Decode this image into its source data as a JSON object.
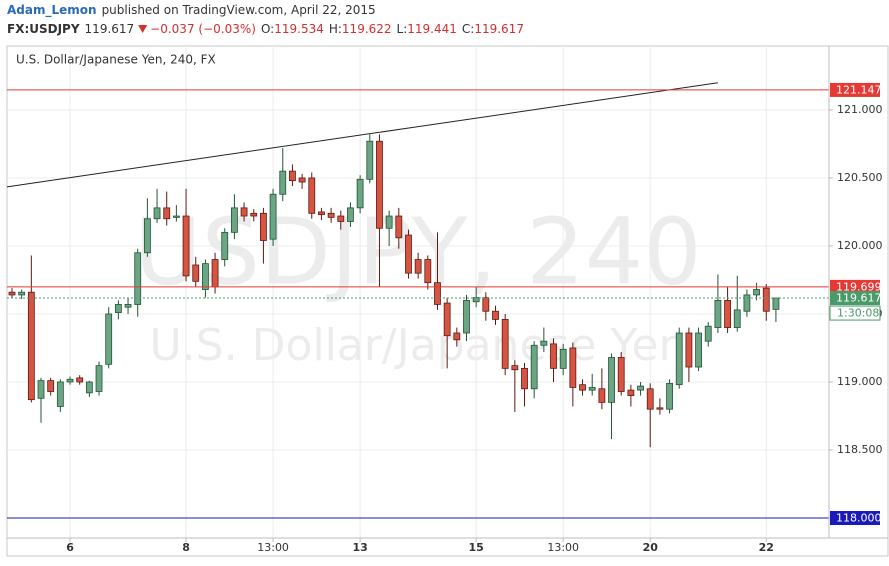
{
  "header": {
    "author": "Adam_Lemon",
    "published": "published on TradingView.com, April 22, 2015",
    "symbol": "FX:USDJPY",
    "last": 119.617,
    "change": "−0.037 (−0.03%)",
    "ohlc": [
      {
        "label": "O:",
        "value": 119.534
      },
      {
        "label": "H:",
        "value": 119.622
      },
      {
        "label": "L:",
        "value": 119.441
      },
      {
        "label": "C:",
        "value": 119.617
      }
    ]
  },
  "chart_data": {
    "type": "candlestick",
    "title": "U.S. Dollar/Japanese Yen, 240, FX",
    "watermark": {
      "symbol": "USDJPY, 240",
      "name": "U.S. Dollar/Japanese Yen"
    },
    "categories": [
      null,
      null,
      null,
      null,
      null,
      null,
      "6",
      null,
      null,
      null,
      null,
      null,
      null,
      null,
      null,
      null,
      null,
      null,
      "8",
      null,
      null,
      null,
      null,
      null,
      null,
      null,
      null,
      "13:00",
      null,
      null,
      null,
      null,
      null,
      null,
      null,
      null,
      "13",
      null,
      null,
      null,
      null,
      null,
      null,
      null,
      null,
      null,
      null,
      null,
      "15",
      null,
      null,
      null,
      null,
      null,
      null,
      null,
      null,
      "13:00",
      null,
      null,
      null,
      null,
      null,
      null,
      null,
      null,
      "20",
      null,
      null,
      null,
      null,
      null,
      null,
      null,
      null,
      null,
      null,
      null,
      "22",
      null
    ],
    "open": [
      119.66,
      119.64,
      119.66,
      118.88,
      119.01,
      118.82,
      119.0,
      119.03,
      118.92,
      118.93,
      119.13,
      119.51,
      119.55,
      119.57,
      119.95,
      120.2,
      120.28,
      120.21,
      120.22,
      119.86,
      119.68,
      119.9,
      119.9,
      120.1,
      120.28,
      120.24,
      120.24,
      120.05,
      120.38,
      120.55,
      120.5,
      120.5,
      120.25,
      120.24,
      120.22,
      120.18,
      120.28,
      120.49,
      120.77,
      120.13,
      120.22,
      120.08,
      119.9,
      119.9,
      119.73,
      119.58,
      119.36,
      119.36,
      119.59,
      119.62,
      119.52,
      119.46,
      119.12,
      119.1,
      118.95,
      119.27,
      119.28,
      119.1,
      119.25,
      118.98,
      118.94,
      118.95,
      118.85,
      119.18,
      118.94,
      118.94,
      118.95,
      118.81,
      118.8,
      118.98,
      119.36,
      119.11,
      119.3,
      119.4,
      119.6,
      119.4,
      119.52,
      119.64,
      119.69,
      119.534
    ],
    "high": [
      119.69,
      119.68,
      119.93,
      119.03,
      119.03,
      119.02,
      119.04,
      119.05,
      119.01,
      119.15,
      119.55,
      119.6,
      119.62,
      119.98,
      120.35,
      120.42,
      120.4,
      120.3,
      120.42,
      119.92,
      119.9,
      119.95,
      120.13,
      120.38,
      120.32,
      120.27,
      120.28,
      120.42,
      120.72,
      120.6,
      120.53,
      120.54,
      120.28,
      120.28,
      120.26,
      120.32,
      120.52,
      120.82,
      120.82,
      120.26,
      120.28,
      120.12,
      119.95,
      119.93,
      120.1,
      119.62,
      119.4,
      119.64,
      119.7,
      119.66,
      119.56,
      119.5,
      119.16,
      119.14,
      119.3,
      119.4,
      119.32,
      119.28,
      119.29,
      119.02,
      119.06,
      119.1,
      119.21,
      119.22,
      118.98,
      119.0,
      118.99,
      118.88,
      119.02,
      119.4,
      119.4,
      119.4,
      119.44,
      119.79,
      119.7,
      119.78,
      119.68,
      119.73,
      119.72,
      119.622
    ],
    "low": [
      119.62,
      119.61,
      118.85,
      118.7,
      118.9,
      118.78,
      118.98,
      118.98,
      118.89,
      118.9,
      119.1,
      119.46,
      119.5,
      119.48,
      119.92,
      120.17,
      120.15,
      120.18,
      119.74,
      119.7,
      119.62,
      119.65,
      119.85,
      120.05,
      120.18,
      120.18,
      119.87,
      120.0,
      120.33,
      120.44,
      120.42,
      120.2,
      120.19,
      120.17,
      120.12,
      120.14,
      120.24,
      120.46,
      119.7,
      120.0,
      119.98,
      119.76,
      119.76,
      119.68,
      119.53,
      119.1,
      119.26,
      119.3,
      119.55,
      119.45,
      119.42,
      119.05,
      118.78,
      118.82,
      118.88,
      119.22,
      119.0,
      119.05,
      118.82,
      118.9,
      118.9,
      118.8,
      118.58,
      118.9,
      118.82,
      118.9,
      118.52,
      118.76,
      118.77,
      118.95,
      119.0,
      119.08,
      119.26,
      119.36,
      119.36,
      119.37,
      119.48,
      119.6,
      119.45,
      119.441
    ],
    "close": [
      119.64,
      119.66,
      118.87,
      119.01,
      118.93,
      119.0,
      119.02,
      119.0,
      119.0,
      119.12,
      119.5,
      119.57,
      119.57,
      119.95,
      120.2,
      120.28,
      120.2,
      120.22,
      119.78,
      119.74,
      119.87,
      119.7,
      120.1,
      120.28,
      120.22,
      120.22,
      120.04,
      120.38,
      120.55,
      120.48,
      120.47,
      120.24,
      120.23,
      120.21,
      120.18,
      120.28,
      120.49,
      120.77,
      120.13,
      120.22,
      120.06,
      119.8,
      119.8,
      119.73,
      119.57,
      119.34,
      119.31,
      119.6,
      119.62,
      119.52,
      119.46,
      119.1,
      119.09,
      118.95,
      119.27,
      119.3,
      119.1,
      119.24,
      118.96,
      118.94,
      118.96,
      118.85,
      119.18,
      118.93,
      118.9,
      118.97,
      118.8,
      118.8,
      118.99,
      119.36,
      119.11,
      119.36,
      119.41,
      119.6,
      119.4,
      119.53,
      119.64,
      119.68,
      119.52,
      119.617
    ],
    "up_color": "#6ba583",
    "down_color": "#d75442",
    "ylim": [
      117.853,
      121.47
    ],
    "yticks": [
      {
        "value": 118.5,
        "label": "118.500"
      },
      {
        "value": 119,
        "label": "119.000"
      },
      {
        "value": 119.5,
        "label": "119.500"
      },
      {
        "value": 120,
        "label": "120.000"
      },
      {
        "value": 120.5,
        "label": "120.500"
      },
      {
        "value": 121,
        "label": "121.000"
      }
    ],
    "grid": true,
    "hlines": [
      {
        "value": 121.147,
        "label": "121.147",
        "color": "#e53935"
      },
      {
        "value": 119.699,
        "label": "119.699",
        "color": "#e53935"
      },
      {
        "value": 118,
        "label": "118.000",
        "color": "#1a1ab8"
      },
      {
        "value": 119.617,
        "label": "119.617",
        "color": "#4a9a6a",
        "dashed": true
      }
    ],
    "countdown": "1:30:08",
    "trendline": {
      "x": [
        0,
        73
      ],
      "y": [
        120.44,
        121.2
      ],
      "color": "#222222"
    }
  }
}
